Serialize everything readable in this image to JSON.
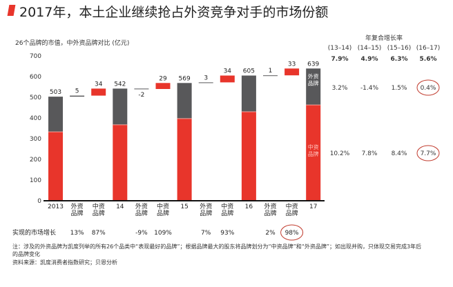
{
  "title": "2017年，本土企业继续抢占外资竞争对手的市场份额",
  "subtitle": "26个品牌的市值，中外资品牌对比 (亿元)",
  "chart_data": {
    "type": "bar",
    "subtype": "waterfall-stacked",
    "title": "26个品牌的市值，中外资品牌对比 (亿元)",
    "ylim": [
      0,
      700
    ],
    "yticks": [
      0,
      100,
      200,
      300,
      400,
      500,
      600,
      700
    ],
    "categories": [
      "2013",
      "外资\n品牌",
      "中资\n品牌",
      "14",
      "外资\n品牌",
      "中资\n品牌",
      "15",
      "外资\n品牌",
      "中资\n品牌",
      "16",
      "外资\n品牌",
      "中资\n品牌",
      "17"
    ],
    "totals": [
      {
        "year": "2013",
        "total": 503,
        "foreign": 170,
        "domestic": 333
      },
      {
        "year": "14",
        "total": 542,
        "foreign": 175,
        "domestic": 367
      },
      {
        "year": "15",
        "total": 569,
        "foreign": 172,
        "domestic": 397
      },
      {
        "year": "16",
        "total": 605,
        "foreign": 175,
        "domestic": 430
      },
      {
        "year": "17",
        "total": 639,
        "foreign": 176,
        "domestic": 463
      }
    ],
    "changes": [
      {
        "foreign": 5,
        "domestic": 34
      },
      {
        "foreign": -2,
        "domestic": 29
      },
      {
        "foreign": 3,
        "domestic": 34
      },
      {
        "foreign": 1,
        "domestic": 33
      }
    ],
    "bar_inner_labels": {
      "foreign": "外资\n品牌",
      "domestic": "中资\n品牌"
    },
    "market_growth": {
      "label": "实现的市场增长",
      "values": [
        "13%",
        "87%",
        "-9%",
        "109%",
        "7%",
        "93%",
        "2%",
        "98%"
      ],
      "circled": [
        7
      ]
    },
    "colors": {
      "foreign": "#58585a",
      "domestic": "#e8352b",
      "circle": "#c0392b"
    }
  },
  "cagr": {
    "title": "年复合增长率",
    "periods": [
      "(13–14)",
      "(14–15)",
      "(15–16)",
      "(16–17)"
    ],
    "total": [
      "7.9%",
      "4.9%",
      "6.3%",
      "5.6%"
    ],
    "foreign": [
      "3.2%",
      "-1.4%",
      "1.5%",
      "0.4%"
    ],
    "domestic": [
      "10.2%",
      "7.8%",
      "8.4%",
      "7.7%"
    ],
    "circled_column": 3
  },
  "notes": {
    "line1": "注：涉及的外资品牌为凯度列举的所有26个品类中“表现最好的品牌”；根据品牌最大的股东将品牌划分为“中资品牌”和“外资品牌”；如出现并购，只体现交易完成3年后",
    "line2": "的品牌变化",
    "source": "资料来源：凯度消费者指数研究；贝恩分析"
  }
}
